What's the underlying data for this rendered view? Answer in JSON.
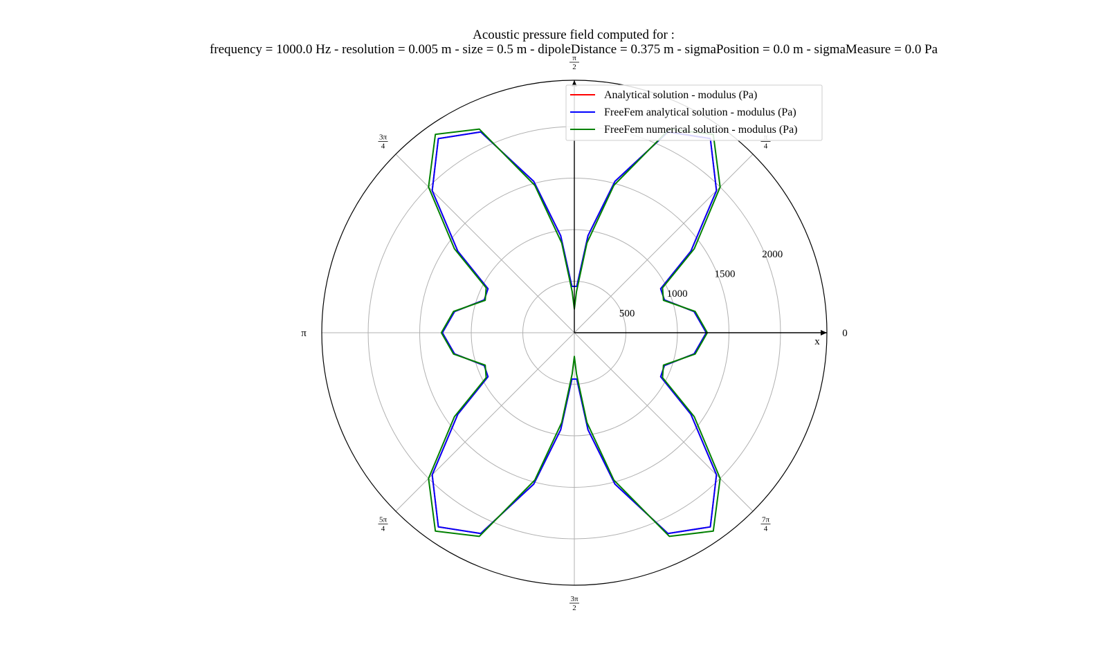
{
  "chart_data": {
    "type": "line",
    "projection": "polar",
    "title_line1": "Acoustic pressure field computed for :",
    "title_line2": "frequency = 1000.0 Hz - resolution = 0.005 m - size = 0.5 m - dipoleDistance = 0.375 m - sigmaPosition = 0.0 m - sigmaMeasure = 0.0 Pa",
    "radial_ticks": [
      500,
      1000,
      1500,
      2000
    ],
    "rlim": [
      0,
      2450
    ],
    "grid": true,
    "legend_position": "top-right",
    "x_axis_label": "x",
    "angle_labels": [
      {
        "num": "",
        "den": "",
        "text": "0"
      },
      {
        "num": "π",
        "den": "4",
        "text": ""
      },
      {
        "num": "π",
        "den": "2",
        "text": ""
      },
      {
        "num": "3π",
        "den": "4",
        "text": ""
      },
      {
        "num": "",
        "den": "",
        "text": "π"
      },
      {
        "num": "5π",
        "den": "4",
        "text": ""
      },
      {
        "num": "3π",
        "den": "2",
        "text": ""
      },
      {
        "num": "7π",
        "den": "4",
        "text": ""
      }
    ],
    "theta_unit": "degrees",
    "series": [
      {
        "name": "Analytical solution - modulus (Pa)",
        "color": "#ff0000",
        "key": "analytical",
        "points": [
          {
            "theta": 0,
            "r": 1280
          },
          {
            "theta": 10,
            "r": 1180
          },
          {
            "theta": 20,
            "r": 930
          },
          {
            "theta": 27,
            "r": 940
          },
          {
            "theta": 35,
            "r": 1380
          },
          {
            "theta": 45,
            "r": 1950
          },
          {
            "theta": 55,
            "r": 2300
          },
          {
            "theta": 65,
            "r": 2150
          },
          {
            "theta": 75,
            "r": 1520
          },
          {
            "theta": 82,
            "r": 950
          },
          {
            "theta": 87,
            "r": 450
          },
          {
            "theta": 90,
            "r": 450
          },
          {
            "theta": 93,
            "r": 450
          },
          {
            "theta": 98,
            "r": 950
          },
          {
            "theta": 105,
            "r": 1520
          },
          {
            "theta": 115,
            "r": 2150
          },
          {
            "theta": 125,
            "r": 2300
          },
          {
            "theta": 135,
            "r": 1950
          },
          {
            "theta": 145,
            "r": 1380
          },
          {
            "theta": 153,
            "r": 940
          },
          {
            "theta": 160,
            "r": 930
          },
          {
            "theta": 170,
            "r": 1180
          },
          {
            "theta": 180,
            "r": 1280
          },
          {
            "theta": 190,
            "r": 1180
          },
          {
            "theta": 200,
            "r": 930
          },
          {
            "theta": 207,
            "r": 940
          },
          {
            "theta": 215,
            "r": 1380
          },
          {
            "theta": 225,
            "r": 1950
          },
          {
            "theta": 235,
            "r": 2300
          },
          {
            "theta": 245,
            "r": 2150
          },
          {
            "theta": 255,
            "r": 1520
          },
          {
            "theta": 262,
            "r": 950
          },
          {
            "theta": 267,
            "r": 450
          },
          {
            "theta": 270,
            "r": 450
          },
          {
            "theta": 273,
            "r": 450
          },
          {
            "theta": 278,
            "r": 950
          },
          {
            "theta": 285,
            "r": 1520
          },
          {
            "theta": 295,
            "r": 2150
          },
          {
            "theta": 305,
            "r": 2300
          },
          {
            "theta": 315,
            "r": 1950
          },
          {
            "theta": 325,
            "r": 1380
          },
          {
            "theta": 333,
            "r": 940
          },
          {
            "theta": 340,
            "r": 930
          },
          {
            "theta": 350,
            "r": 1180
          },
          {
            "theta": 360,
            "r": 1280
          }
        ]
      },
      {
        "name": "FreeFem analytical solution - modulus (Pa)",
        "color": "#0000ff",
        "key": "freefem_analytical",
        "points": [
          {
            "theta": 0,
            "r": 1280
          },
          {
            "theta": 10,
            "r": 1180
          },
          {
            "theta": 20,
            "r": 930
          },
          {
            "theta": 27,
            "r": 940
          },
          {
            "theta": 35,
            "r": 1380
          },
          {
            "theta": 45,
            "r": 1950
          },
          {
            "theta": 55,
            "r": 2300
          },
          {
            "theta": 65,
            "r": 2150
          },
          {
            "theta": 75,
            "r": 1520
          },
          {
            "theta": 82,
            "r": 950
          },
          {
            "theta": 87,
            "r": 450
          },
          {
            "theta": 90,
            "r": 450
          },
          {
            "theta": 93,
            "r": 450
          },
          {
            "theta": 98,
            "r": 950
          },
          {
            "theta": 105,
            "r": 1520
          },
          {
            "theta": 115,
            "r": 2150
          },
          {
            "theta": 125,
            "r": 2300
          },
          {
            "theta": 135,
            "r": 1950
          },
          {
            "theta": 145,
            "r": 1380
          },
          {
            "theta": 153,
            "r": 940
          },
          {
            "theta": 160,
            "r": 930
          },
          {
            "theta": 170,
            "r": 1180
          },
          {
            "theta": 180,
            "r": 1280
          },
          {
            "theta": 190,
            "r": 1180
          },
          {
            "theta": 200,
            "r": 930
          },
          {
            "theta": 207,
            "r": 940
          },
          {
            "theta": 215,
            "r": 1380
          },
          {
            "theta": 225,
            "r": 1950
          },
          {
            "theta": 235,
            "r": 2300
          },
          {
            "theta": 245,
            "r": 2150
          },
          {
            "theta": 255,
            "r": 1520
          },
          {
            "theta": 262,
            "r": 950
          },
          {
            "theta": 267,
            "r": 450
          },
          {
            "theta": 270,
            "r": 450
          },
          {
            "theta": 273,
            "r": 450
          },
          {
            "theta": 278,
            "r": 950
          },
          {
            "theta": 285,
            "r": 1520
          },
          {
            "theta": 295,
            "r": 2150
          },
          {
            "theta": 305,
            "r": 2300
          },
          {
            "theta": 315,
            "r": 1950
          },
          {
            "theta": 325,
            "r": 1380
          },
          {
            "theta": 333,
            "r": 940
          },
          {
            "theta": 340,
            "r": 930
          },
          {
            "theta": 350,
            "r": 1180
          },
          {
            "theta": 360,
            "r": 1280
          }
        ]
      },
      {
        "name": "FreeFem numerical solution - modulus (Pa)",
        "color": "#008000",
        "key": "freefem_numerical",
        "points": [
          {
            "theta": 0,
            "r": 1290
          },
          {
            "theta": 10,
            "r": 1190
          },
          {
            "theta": 20,
            "r": 920
          },
          {
            "theta": 27,
            "r": 960
          },
          {
            "theta": 35,
            "r": 1420
          },
          {
            "theta": 45,
            "r": 2000
          },
          {
            "theta": 55,
            "r": 2350
          },
          {
            "theta": 65,
            "r": 2180
          },
          {
            "theta": 75,
            "r": 1480
          },
          {
            "theta": 82,
            "r": 880
          },
          {
            "theta": 87,
            "r": 400
          },
          {
            "theta": 90,
            "r": 230
          },
          {
            "theta": 93,
            "r": 400
          },
          {
            "theta": 98,
            "r": 880
          },
          {
            "theta": 105,
            "r": 1480
          },
          {
            "theta": 115,
            "r": 2180
          },
          {
            "theta": 125,
            "r": 2350
          },
          {
            "theta": 135,
            "r": 2000
          },
          {
            "theta": 145,
            "r": 1420
          },
          {
            "theta": 153,
            "r": 960
          },
          {
            "theta": 160,
            "r": 920
          },
          {
            "theta": 170,
            "r": 1190
          },
          {
            "theta": 180,
            "r": 1290
          },
          {
            "theta": 190,
            "r": 1190
          },
          {
            "theta": 200,
            "r": 920
          },
          {
            "theta": 207,
            "r": 960
          },
          {
            "theta": 215,
            "r": 1420
          },
          {
            "theta": 225,
            "r": 2000
          },
          {
            "theta": 235,
            "r": 2350
          },
          {
            "theta": 245,
            "r": 2180
          },
          {
            "theta": 255,
            "r": 1480
          },
          {
            "theta": 262,
            "r": 880
          },
          {
            "theta": 267,
            "r": 400
          },
          {
            "theta": 270,
            "r": 230
          },
          {
            "theta": 273,
            "r": 400
          },
          {
            "theta": 278,
            "r": 880
          },
          {
            "theta": 285,
            "r": 1480
          },
          {
            "theta": 295,
            "r": 2180
          },
          {
            "theta": 305,
            "r": 2350
          },
          {
            "theta": 315,
            "r": 2000
          },
          {
            "theta": 325,
            "r": 1420
          },
          {
            "theta": 333,
            "r": 960
          },
          {
            "theta": 340,
            "r": 920
          },
          {
            "theta": 350,
            "r": 1190
          },
          {
            "theta": 360,
            "r": 1290
          }
        ]
      }
    ]
  }
}
